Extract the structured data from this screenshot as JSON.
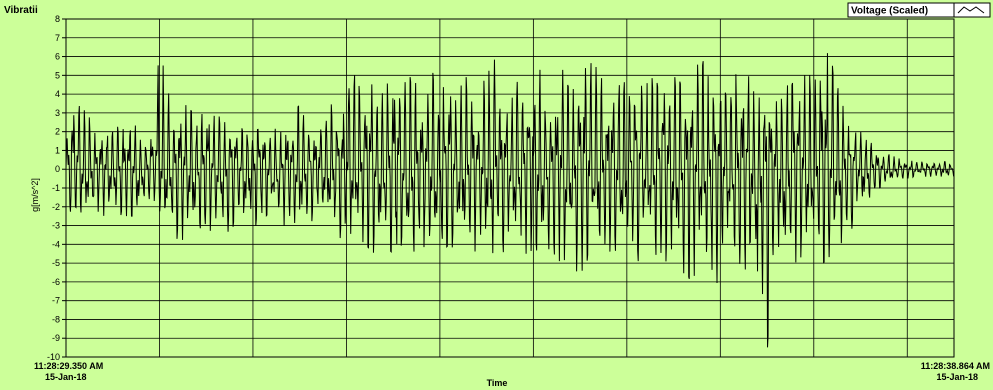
{
  "chart_data": {
    "type": "line",
    "title": "Vibratii",
    "xlabel": "Time",
    "ylabel": "g[m/s^2]",
    "legend": {
      "entry": "Voltage (Scaled)",
      "placement": "top-right",
      "icon": "line-sample-icon"
    },
    "ylim": [
      -10,
      8
    ],
    "y_ticks": [
      "8",
      "7",
      "6",
      "5",
      "4",
      "3",
      "2",
      "1",
      "0",
      "-1",
      "-2",
      "-3",
      "-4",
      "-5",
      "-6",
      "-7",
      "-8",
      "-9",
      "-10"
    ],
    "x_start": {
      "time": "11:28:29.350 AM",
      "date": "15-Jan-18"
    },
    "x_end": {
      "time": "11:28:38.864 AM",
      "date": "15-Jan-18"
    },
    "grid": true,
    "colors": {
      "plot_background": "#ccff99",
      "frame_background": "#ccff99",
      "grid": "#000000",
      "trace": "#000000"
    },
    "series": [
      {
        "name": "Voltage (Scaled)",
        "x_seconds": [
          0.0,
          0.1,
          0.2,
          0.3,
          0.4,
          0.5,
          0.6,
          0.7,
          0.8,
          0.9,
          1.0,
          1.1,
          1.2,
          1.3,
          1.4,
          1.5,
          1.6,
          1.7,
          1.8,
          1.9,
          2.0,
          2.1,
          2.2,
          2.3,
          2.4,
          2.5,
          2.6,
          2.7,
          2.8,
          2.9,
          3.0,
          3.1,
          3.2,
          3.3,
          3.4,
          3.5,
          3.6,
          3.7,
          3.8,
          3.9,
          4.0,
          4.1,
          4.2,
          4.3,
          4.4,
          4.5,
          4.6,
          4.7,
          4.8,
          4.9,
          5.0,
          5.1,
          5.2,
          5.3,
          5.4,
          5.5,
          5.6,
          5.7,
          5.8,
          5.9,
          6.0,
          6.1,
          6.2,
          6.3,
          6.4,
          6.5,
          6.6,
          6.7,
          6.8,
          6.9,
          7.0,
          7.1,
          7.2,
          7.3,
          7.4,
          7.5,
          7.6,
          7.7,
          7.8,
          7.9,
          8.0,
          8.1,
          8.2,
          8.3,
          8.4,
          8.5,
          8.6,
          8.7,
          8.8,
          8.9,
          9.0,
          9.1,
          9.2,
          9.3,
          9.4,
          9.5
        ],
        "envelope_max": [
          1.5,
          5.5,
          3.5,
          2.0,
          2.8,
          2.0,
          2.5,
          3.0,
          1.5,
          2.0,
          6.5,
          4.0,
          3.0,
          3.5,
          2.5,
          3.5,
          3.0,
          2.5,
          3.0,
          2.0,
          2.5,
          3.0,
          2.5,
          2.0,
          2.5,
          3.5,
          2.0,
          3.0,
          2.5,
          5.0,
          4.5,
          5.5,
          5.0,
          4.5,
          4.0,
          5.5,
          4.5,
          5.0,
          4.0,
          5.5,
          4.0,
          5.0,
          4.5,
          5.0,
          4.0,
          5.0,
          6.0,
          4.5,
          5.0,
          4.5,
          6.0,
          5.0,
          4.5,
          5.5,
          4.0,
          5.0,
          6.5,
          5.0,
          4.5,
          5.0,
          4.5,
          5.5,
          4.5,
          5.0,
          5.5,
          5.0,
          4.5,
          5.0,
          6.0,
          4.5,
          5.0,
          4.5,
          5.5,
          5.0,
          3.5,
          5.5,
          4.0,
          4.5,
          5.5,
          5.0,
          5.0,
          7.8,
          5.5,
          3.5,
          2.5,
          2.0,
          1.5,
          1.0,
          0.8,
          0.6,
          0.5,
          0.4,
          0.4,
          0.4,
          0.4,
          0.3
        ],
        "envelope_min": [
          -2.5,
          -2.0,
          -2.5,
          -2.5,
          -2.5,
          -2.0,
          -2.5,
          -2.5,
          -2.5,
          -1.5,
          -2.5,
          -3.5,
          -4.0,
          -3.5,
          -3.0,
          -3.5,
          -3.0,
          -3.5,
          -3.0,
          -2.5,
          -3.0,
          -3.0,
          -2.5,
          -3.0,
          -3.5,
          -3.0,
          -3.0,
          -2.5,
          -3.0,
          -3.5,
          -4.0,
          -3.5,
          -4.0,
          -4.5,
          -4.0,
          -4.5,
          -4.0,
          -4.5,
          -4.0,
          -4.5,
          -4.5,
          -4.0,
          -4.5,
          -4.0,
          -4.5,
          -4.5,
          -5.0,
          -4.5,
          -4.0,
          -4.5,
          -4.5,
          -4.0,
          -4.5,
          -5.0,
          -4.5,
          -6.0,
          -4.5,
          -4.5,
          -4.5,
          -4.5,
          -4.5,
          -5.0,
          -4.5,
          -4.5,
          -5.0,
          -4.5,
          -5.5,
          -6.0,
          -4.5,
          -8.0,
          -5.0,
          -4.5,
          -5.0,
          -5.5,
          -7.5,
          -9.8,
          -5.0,
          -4.5,
          -5.0,
          -4.5,
          -5.0,
          -5.0,
          -4.5,
          -4.0,
          -3.5,
          -2.0,
          -1.5,
          -1.0,
          -0.8,
          -0.6,
          -0.5,
          -0.4,
          -0.4,
          -0.4,
          -0.4,
          -0.3
        ]
      }
    ]
  }
}
